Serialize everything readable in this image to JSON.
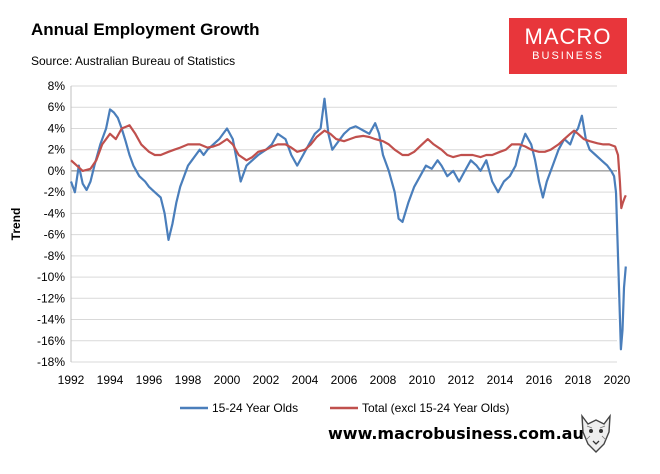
{
  "header": {
    "title": "Annual Employment Growth",
    "subtitle": "Source: Australian Bureau of Statistics"
  },
  "logo": {
    "line1": "MACRO",
    "line2": "BUSINESS",
    "color": "#e8363b"
  },
  "footer": {
    "site": "www.macrobusiness.com.au"
  },
  "chart_data": {
    "type": "line",
    "title": "Annual Employment Growth",
    "ylabel": "Trend",
    "xlabel": "",
    "ylim": [
      -18,
      8
    ],
    "xlim": [
      1992,
      2020
    ],
    "x_ticks": [
      1992,
      1994,
      1996,
      1998,
      2000,
      2002,
      2004,
      2006,
      2008,
      2010,
      2012,
      2014,
      2016,
      2018,
      2020
    ],
    "y_ticks": [
      8,
      6,
      4,
      2,
      0,
      -2,
      -4,
      -6,
      -8,
      -10,
      -12,
      -14,
      -16,
      -18
    ],
    "y_tick_labels": [
      "8%",
      "6%",
      "4%",
      "2%",
      "0%",
      "-2%",
      "-4%",
      "-6%",
      "-8%",
      "-10%",
      "-12%",
      "-14%",
      "-16%",
      "-18%"
    ],
    "legend_position": "bottom",
    "series": [
      {
        "name": "15-24 Year Olds",
        "color": "#4a7ebb",
        "points": [
          [
            1992.0,
            -1.0
          ],
          [
            1992.2,
            -2.0
          ],
          [
            1992.4,
            0.5
          ],
          [
            1992.6,
            -1.2
          ],
          [
            1992.8,
            -1.8
          ],
          [
            1993.0,
            -1.0
          ],
          [
            1993.2,
            0.5
          ],
          [
            1993.5,
            2.5
          ],
          [
            1993.8,
            4.0
          ],
          [
            1994.0,
            5.8
          ],
          [
            1994.2,
            5.5
          ],
          [
            1994.4,
            5.0
          ],
          [
            1994.6,
            4.0
          ],
          [
            1994.8,
            2.8
          ],
          [
            1995.0,
            1.5
          ],
          [
            1995.2,
            0.5
          ],
          [
            1995.5,
            -0.5
          ],
          [
            1995.8,
            -1.0
          ],
          [
            1996.0,
            -1.5
          ],
          [
            1996.3,
            -2.0
          ],
          [
            1996.6,
            -2.5
          ],
          [
            1996.8,
            -4.0
          ],
          [
            1997.0,
            -6.5
          ],
          [
            1997.2,
            -5.0
          ],
          [
            1997.4,
            -3.0
          ],
          [
            1997.6,
            -1.5
          ],
          [
            1997.8,
            -0.5
          ],
          [
            1998.0,
            0.5
          ],
          [
            1998.2,
            1.0
          ],
          [
            1998.4,
            1.5
          ],
          [
            1998.6,
            2.0
          ],
          [
            1998.8,
            1.5
          ],
          [
            1999.0,
            2.0
          ],
          [
            1999.3,
            2.5
          ],
          [
            1999.6,
            3.0
          ],
          [
            2000.0,
            4.0
          ],
          [
            2000.3,
            3.0
          ],
          [
            2000.5,
            1.0
          ],
          [
            2000.7,
            -1.0
          ],
          [
            2001.0,
            0.5
          ],
          [
            2001.3,
            1.0
          ],
          [
            2001.6,
            1.5
          ],
          [
            2002.0,
            2.0
          ],
          [
            2002.3,
            2.5
          ],
          [
            2002.6,
            3.5
          ],
          [
            2003.0,
            3.0
          ],
          [
            2003.3,
            1.5
          ],
          [
            2003.6,
            0.5
          ],
          [
            2003.9,
            1.5
          ],
          [
            2004.2,
            2.5
          ],
          [
            2004.5,
            3.5
          ],
          [
            2004.8,
            4.0
          ],
          [
            2005.0,
            6.8
          ],
          [
            2005.2,
            3.5
          ],
          [
            2005.4,
            2.0
          ],
          [
            2005.6,
            2.5
          ],
          [
            2005.8,
            3.0
          ],
          [
            2006.0,
            3.5
          ],
          [
            2006.3,
            4.0
          ],
          [
            2006.6,
            4.2
          ],
          [
            2007.0,
            3.8
          ],
          [
            2007.3,
            3.5
          ],
          [
            2007.6,
            4.5
          ],
          [
            2007.8,
            3.5
          ],
          [
            2008.0,
            1.5
          ],
          [
            2008.3,
            0.0
          ],
          [
            2008.6,
            -2.0
          ],
          [
            2008.8,
            -4.5
          ],
          [
            2009.0,
            -4.8
          ],
          [
            2009.3,
            -3.0
          ],
          [
            2009.6,
            -1.5
          ],
          [
            2009.9,
            -0.5
          ],
          [
            2010.2,
            0.5
          ],
          [
            2010.5,
            0.2
          ],
          [
            2010.8,
            1.0
          ],
          [
            2011.0,
            0.5
          ],
          [
            2011.3,
            -0.5
          ],
          [
            2011.6,
            0.0
          ],
          [
            2011.9,
            -1.0
          ],
          [
            2012.2,
            0.0
          ],
          [
            2012.5,
            1.0
          ],
          [
            2012.8,
            0.5
          ],
          [
            2013.0,
            0.0
          ],
          [
            2013.3,
            1.0
          ],
          [
            2013.6,
            -1.0
          ],
          [
            2013.9,
            -2.0
          ],
          [
            2014.2,
            -1.0
          ],
          [
            2014.5,
            -0.5
          ],
          [
            2014.8,
            0.5
          ],
          [
            2015.0,
            2.0
          ],
          [
            2015.3,
            3.5
          ],
          [
            2015.6,
            2.5
          ],
          [
            2015.8,
            1.0
          ],
          [
            2016.0,
            -1.0
          ],
          [
            2016.2,
            -2.5
          ],
          [
            2016.4,
            -1.0
          ],
          [
            2016.7,
            0.5
          ],
          [
            2017.0,
            2.0
          ],
          [
            2017.3,
            3.0
          ],
          [
            2017.6,
            2.5
          ],
          [
            2017.8,
            3.5
          ],
          [
            2018.0,
            4.0
          ],
          [
            2018.2,
            5.2
          ],
          [
            2018.4,
            3.0
          ],
          [
            2018.6,
            2.0
          ],
          [
            2018.9,
            1.5
          ],
          [
            2019.2,
            1.0
          ],
          [
            2019.5,
            0.5
          ],
          [
            2019.7,
            0.0
          ],
          [
            2019.85,
            -0.5
          ],
          [
            2019.95,
            -2.0
          ],
          [
            2020.05,
            -8.0
          ],
          [
            2020.2,
            -16.8
          ],
          [
            2020.28,
            -15.0
          ],
          [
            2020.36,
            -11.0
          ],
          [
            2020.45,
            -9.0
          ]
        ]
      },
      {
        "name": "Total (excl 15-24 Year Olds)",
        "color": "#c0504d",
        "points": [
          [
            1992.0,
            1.0
          ],
          [
            1992.3,
            0.5
          ],
          [
            1992.6,
            0.0
          ],
          [
            1993.0,
            0.2
          ],
          [
            1993.3,
            1.0
          ],
          [
            1993.6,
            2.5
          ],
          [
            1994.0,
            3.5
          ],
          [
            1994.3,
            3.0
          ],
          [
            1994.6,
            4.0
          ],
          [
            1995.0,
            4.3
          ],
          [
            1995.3,
            3.5
          ],
          [
            1995.6,
            2.5
          ],
          [
            1996.0,
            1.8
          ],
          [
            1996.3,
            1.5
          ],
          [
            1996.6,
            1.5
          ],
          [
            1997.0,
            1.8
          ],
          [
            1997.3,
            2.0
          ],
          [
            1997.6,
            2.2
          ],
          [
            1998.0,
            2.5
          ],
          [
            1998.3,
            2.5
          ],
          [
            1998.6,
            2.5
          ],
          [
            1999.0,
            2.2
          ],
          [
            1999.3,
            2.3
          ],
          [
            1999.6,
            2.5
          ],
          [
            2000.0,
            3.0
          ],
          [
            2000.3,
            2.5
          ],
          [
            2000.6,
            1.5
          ],
          [
            2001.0,
            1.0
          ],
          [
            2001.3,
            1.3
          ],
          [
            2001.6,
            1.8
          ],
          [
            2002.0,
            2.0
          ],
          [
            2002.3,
            2.3
          ],
          [
            2002.6,
            2.5
          ],
          [
            2003.0,
            2.5
          ],
          [
            2003.3,
            2.2
          ],
          [
            2003.6,
            1.8
          ],
          [
            2004.0,
            2.0
          ],
          [
            2004.3,
            2.5
          ],
          [
            2004.6,
            3.2
          ],
          [
            2005.0,
            3.8
          ],
          [
            2005.3,
            3.5
          ],
          [
            2005.6,
            3.0
          ],
          [
            2006.0,
            2.8
          ],
          [
            2006.3,
            3.0
          ],
          [
            2006.6,
            3.2
          ],
          [
            2007.0,
            3.3
          ],
          [
            2007.3,
            3.2
          ],
          [
            2007.6,
            3.0
          ],
          [
            2008.0,
            2.8
          ],
          [
            2008.3,
            2.5
          ],
          [
            2008.6,
            2.0
          ],
          [
            2009.0,
            1.5
          ],
          [
            2009.3,
            1.5
          ],
          [
            2009.6,
            1.8
          ],
          [
            2010.0,
            2.5
          ],
          [
            2010.3,
            3.0
          ],
          [
            2010.6,
            2.5
          ],
          [
            2011.0,
            2.0
          ],
          [
            2011.3,
            1.5
          ],
          [
            2011.6,
            1.3
          ],
          [
            2012.0,
            1.5
          ],
          [
            2012.3,
            1.5
          ],
          [
            2012.6,
            1.5
          ],
          [
            2013.0,
            1.3
          ],
          [
            2013.3,
            1.5
          ],
          [
            2013.6,
            1.5
          ],
          [
            2014.0,
            1.8
          ],
          [
            2014.3,
            2.0
          ],
          [
            2014.6,
            2.5
          ],
          [
            2015.0,
            2.5
          ],
          [
            2015.3,
            2.3
          ],
          [
            2015.6,
            2.0
          ],
          [
            2016.0,
            1.8
          ],
          [
            2016.3,
            1.8
          ],
          [
            2016.6,
            2.0
          ],
          [
            2017.0,
            2.5
          ],
          [
            2017.3,
            3.0
          ],
          [
            2017.6,
            3.5
          ],
          [
            2017.8,
            3.8
          ],
          [
            2018.0,
            3.5
          ],
          [
            2018.3,
            3.0
          ],
          [
            2018.6,
            2.8
          ],
          [
            2019.0,
            2.6
          ],
          [
            2019.3,
            2.5
          ],
          [
            2019.6,
            2.5
          ],
          [
            2019.9,
            2.3
          ],
          [
            2020.05,
            1.5
          ],
          [
            2020.15,
            -1.0
          ],
          [
            2020.22,
            -3.5
          ],
          [
            2020.3,
            -3.0
          ],
          [
            2020.4,
            -2.5
          ],
          [
            2020.45,
            -2.3
          ]
        ]
      }
    ]
  }
}
